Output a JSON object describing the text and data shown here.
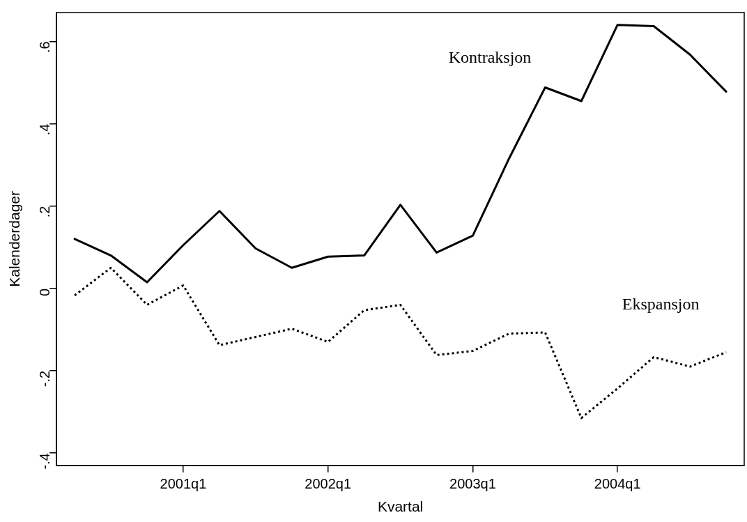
{
  "chart_data": {
    "type": "line",
    "xlabel": "Kvartal",
    "ylabel": "Kalenderdager",
    "categories": [
      null,
      null,
      null,
      "2001q1",
      null,
      null,
      null,
      "2002q1",
      null,
      null,
      null,
      "2003q1",
      null,
      null,
      null,
      "2004q1",
      null,
      null,
      null
    ],
    "series": [
      {
        "name": "Kontraksjon",
        "color": "#000000",
        "line_style": "solid",
        "values": [
          0.12,
          0.08,
          0.015,
          0.105,
          0.188,
          0.097,
          0.05,
          0.077,
          0.08,
          0.203,
          0.087,
          0.128,
          0.315,
          0.488,
          0.455,
          0.64,
          0.637,
          0.568,
          0.478
        ]
      },
      {
        "name": "Ekspansjon",
        "color": "#000000",
        "line_style": "dotted",
        "values": [
          -0.017,
          0.05,
          -0.04,
          0.007,
          -0.138,
          -0.118,
          -0.098,
          -0.13,
          -0.053,
          -0.04,
          -0.162,
          -0.152,
          -0.11,
          -0.107,
          -0.315,
          -0.243,
          -0.167,
          -0.19,
          -0.155
        ]
      }
    ],
    "ylim": [
      -0.43,
      0.67
    ],
    "yticks": [
      {
        "value": -0.4,
        "label": "-.4"
      },
      {
        "value": -0.2,
        "label": "-.2"
      },
      {
        "value": 0,
        "label": "0"
      },
      {
        "value": 0.2,
        "label": ".2"
      },
      {
        "value": 0.4,
        "label": ".4"
      },
      {
        "value": 0.6,
        "label": ".6"
      }
    ],
    "grid": false,
    "legend": false,
    "marker": "none"
  }
}
